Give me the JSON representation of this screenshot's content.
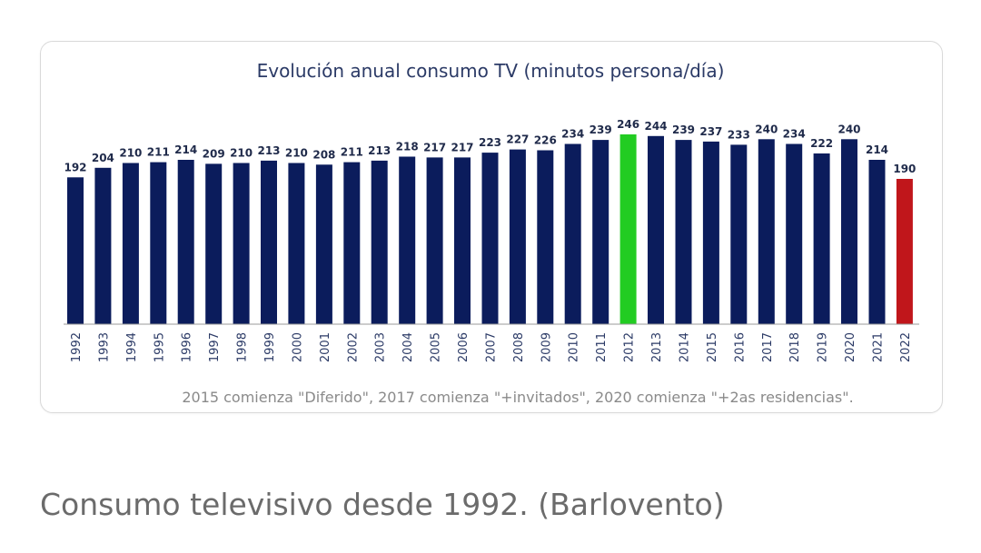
{
  "chart_data": {
    "type": "bar",
    "title": "Evolución anual consumo TV (minutos persona/día)",
    "categories": [
      "1992",
      "1993",
      "1994",
      "1995",
      "1996",
      "1997",
      "1998",
      "1999",
      "2000",
      "2001",
      "2002",
      "2003",
      "2004",
      "2005",
      "2006",
      "2007",
      "2008",
      "2009",
      "2010",
      "2011",
      "2012",
      "2013",
      "2014",
      "2015",
      "2016",
      "2017",
      "2018",
      "2019",
      "2020",
      "2021",
      "2022"
    ],
    "values": [
      192,
      204,
      210,
      211,
      214,
      209,
      210,
      213,
      210,
      208,
      211,
      213,
      218,
      217,
      217,
      223,
      227,
      226,
      234,
      239,
      246,
      244,
      239,
      237,
      233,
      240,
      234,
      222,
      240,
      214,
      190
    ],
    "highlights": {
      "2012": "#22cc22",
      "2022": "#c0161b"
    },
    "bar_color": "#0b1c5c",
    "footnote": "2015 comienza \"Diferido\", 2017 comienza \"+invitados\", 2020 comienza \"+2as residencias\".",
    "xlabel": "",
    "ylabel": "",
    "grid": false,
    "legend": "none"
  },
  "caption": "Consumo televisivo desde 1992. (Barlovento)"
}
